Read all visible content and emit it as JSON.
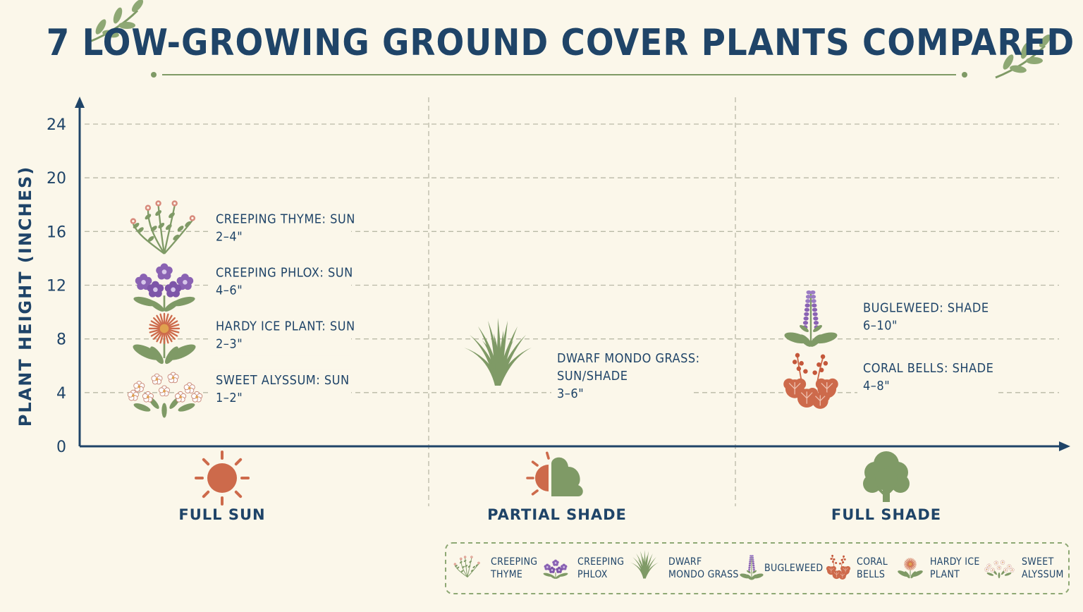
{
  "title": "7 LOW-GROWING GROUND COVER PLANTS COMPARED",
  "colors": {
    "navy": "#1f4468",
    "green": "#7f9a66",
    "terracotta": "#cd6a4b",
    "purple": "#8a62b3",
    "cream": "#fbf7ea"
  },
  "chart_data": {
    "type": "scatter",
    "ylabel": "PLANT HEIGHT (INCHES)",
    "yticks": [
      0,
      4,
      8,
      12,
      16,
      20,
      24
    ],
    "ylim": [
      0,
      24
    ],
    "grid": true,
    "categories": [
      {
        "key": "sun",
        "label": "FULL SUN",
        "icon": "sun-icon"
      },
      {
        "key": "partial",
        "label": "PARTIAL SHADE",
        "icon": "partial-shade-icon"
      },
      {
        "key": "shade",
        "label": "FULL SHADE",
        "icon": "tree-icon"
      }
    ],
    "points": [
      {
        "id": "thyme",
        "category": "sun",
        "y": 16,
        "line1": "CREEPING THYME: SUN",
        "line2": "2–4\"",
        "icon": "creeping-thyme-icon"
      },
      {
        "id": "phlox",
        "category": "sun",
        "y": 12,
        "line1": "CREEPING PHLOX: SUN",
        "line2": "4–6\"",
        "icon": "creeping-phlox-icon"
      },
      {
        "id": "iceplant",
        "category": "sun",
        "y": 8,
        "line1": "HARDY ICE PLANT: SUN",
        "line2": "2–3\"",
        "icon": "hardy-ice-plant-icon"
      },
      {
        "id": "alyssum",
        "category": "sun",
        "y": 4,
        "line1": "SWEET ALYSSUM: SUN",
        "line2": "1–2\"",
        "icon": "sweet-alyssum-icon"
      },
      {
        "id": "mondo",
        "category": "partial",
        "y": 4,
        "line1": "DWARF MONDO GRASS:",
        "line2": "SUN/SHADE",
        "line3": "3–6\"",
        "icon": "dwarf-mondo-grass-icon"
      },
      {
        "id": "bugleweed",
        "category": "shade",
        "y": 10,
        "line1": "BUGLEWEED: SHADE",
        "line2": "6–10\"",
        "icon": "bugleweed-icon"
      },
      {
        "id": "coral",
        "category": "shade",
        "y": 5,
        "line1": "CORAL BELLS: SHADE",
        "line2": "4–8\"",
        "icon": "coral-bells-icon"
      }
    ]
  },
  "legend": {
    "placement": "bottom-right",
    "items": [
      {
        "id": "thyme",
        "line1": "CREEPING",
        "line2": "THYME",
        "icon": "creeping-thyme-icon"
      },
      {
        "id": "phlox",
        "line1": "CREEPING",
        "line2": "PHLOX",
        "icon": "creeping-phlox-icon"
      },
      {
        "id": "mondo",
        "line1": "DWARF",
        "line2": "MONDO GRASS",
        "icon": "dwarf-mondo-grass-icon"
      },
      {
        "id": "bugleweed",
        "line1": "BUGLEWEED",
        "line2": "",
        "icon": "bugleweed-icon"
      },
      {
        "id": "coral",
        "line1": "CORAL",
        "line2": "BELLS",
        "icon": "coral-bells-icon"
      },
      {
        "id": "iceplant",
        "line1": "HARDY ICE",
        "line2": "PLANT",
        "icon": "hardy-ice-plant-icon"
      },
      {
        "id": "alyssum",
        "line1": "SWEET",
        "line2": "ALYSSUM",
        "icon": "sweet-alyssum-icon"
      }
    ]
  }
}
